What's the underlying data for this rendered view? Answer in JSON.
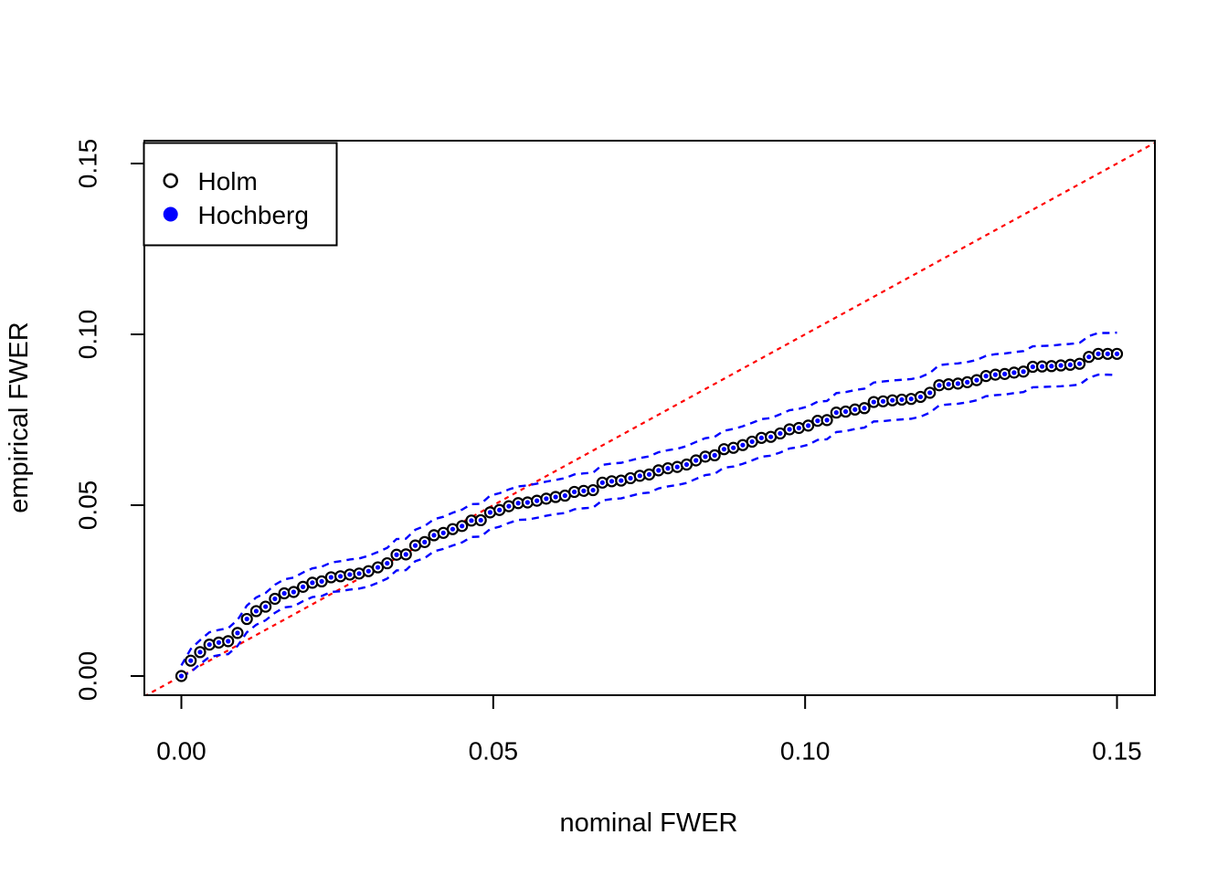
{
  "chart_data": {
    "type": "scatter",
    "title": "",
    "xlabel": "nominal FWER",
    "ylabel": "empirical FWER",
    "xlim": [
      -0.006,
      0.156
    ],
    "ylim": [
      -0.006,
      0.156
    ],
    "grid": false,
    "x_ticks": [
      {
        "value": 0.0,
        "label": "0.00"
      },
      {
        "value": 0.05,
        "label": "0.05"
      },
      {
        "value": 0.1,
        "label": "0.10"
      },
      {
        "value": 0.15,
        "label": "0.15"
      }
    ],
    "y_ticks": [
      {
        "value": 0.0,
        "label": "0.00"
      },
      {
        "value": 0.05,
        "label": "0.05"
      },
      {
        "value": 0.1,
        "label": "0.10"
      },
      {
        "value": 0.15,
        "label": "0.15"
      }
    ],
    "legend": {
      "position": "topleft",
      "entries": [
        {
          "label": "Holm",
          "marker": "open-circle",
          "color": "#000000"
        },
        {
          "label": "Hochberg",
          "marker": "filled-circle",
          "color": "#0000FF"
        }
      ]
    },
    "reference_line": {
      "type": "identity",
      "slope": 1,
      "intercept": 0,
      "style": "dashed",
      "color": "#FF0000"
    },
    "x": [
      0.0,
      0.0015,
      0.003,
      0.0045,
      0.006,
      0.0075,
      0.009,
      0.0105,
      0.012,
      0.0135,
      0.015,
      0.0165,
      0.018,
      0.0195,
      0.021,
      0.0225,
      0.024,
      0.0255,
      0.027,
      0.0285,
      0.03,
      0.0315,
      0.033,
      0.0345,
      0.036,
      0.0375,
      0.039,
      0.0405,
      0.042,
      0.0435,
      0.045,
      0.0465,
      0.048,
      0.0495,
      0.051,
      0.0525,
      0.054,
      0.0555,
      0.057,
      0.0585,
      0.06,
      0.0615,
      0.063,
      0.0645,
      0.066,
      0.0675,
      0.069,
      0.0705,
      0.072,
      0.0735,
      0.075,
      0.0765,
      0.078,
      0.0795,
      0.081,
      0.0825,
      0.084,
      0.0855,
      0.087,
      0.0885,
      0.09,
      0.0915,
      0.093,
      0.0945,
      0.096,
      0.0975,
      0.099,
      0.1005,
      0.102,
      0.1035,
      0.105,
      0.1065,
      0.108,
      0.1095,
      0.111,
      0.1125,
      0.114,
      0.1155,
      0.117,
      0.1185,
      0.12,
      0.1215,
      0.123,
      0.1245,
      0.126,
      0.1275,
      0.129,
      0.1305,
      0.132,
      0.1335,
      0.135,
      0.1365,
      0.138,
      0.1395,
      0.141,
      0.1425,
      0.144,
      0.1455,
      0.147,
      0.1485,
      0.15
    ],
    "series": [
      {
        "name": "Holm",
        "marker": "open-circle",
        "color": "#000000",
        "values": [
          0.0,
          0.0045,
          0.007,
          0.0092,
          0.0098,
          0.0102,
          0.0126,
          0.0167,
          0.019,
          0.0203,
          0.0226,
          0.0242,
          0.0246,
          0.0261,
          0.0273,
          0.0277,
          0.0289,
          0.0292,
          0.0297,
          0.03,
          0.0307,
          0.0318,
          0.033,
          0.0355,
          0.0356,
          0.0382,
          0.0392,
          0.0412,
          0.0419,
          0.043,
          0.0439,
          0.0455,
          0.0456,
          0.0479,
          0.0486,
          0.0497,
          0.0506,
          0.0508,
          0.0513,
          0.0519,
          0.0524,
          0.0528,
          0.0539,
          0.0542,
          0.0544,
          0.0566,
          0.057,
          0.0572,
          0.0579,
          0.0586,
          0.059,
          0.0602,
          0.0608,
          0.0612,
          0.0619,
          0.0631,
          0.0642,
          0.0646,
          0.0664,
          0.0668,
          0.0676,
          0.0686,
          0.0697,
          0.07,
          0.071,
          0.0722,
          0.0726,
          0.0733,
          0.0747,
          0.0749,
          0.0771,
          0.0774,
          0.078,
          0.0784,
          0.0802,
          0.0804,
          0.0807,
          0.0809,
          0.0811,
          0.0817,
          0.0829,
          0.0851,
          0.0854,
          0.0856,
          0.086,
          0.0866,
          0.0878,
          0.0882,
          0.0884,
          0.0888,
          0.0891,
          0.0905,
          0.0906,
          0.0907,
          0.0909,
          0.0911,
          0.0914,
          0.0934,
          0.0943,
          0.0943,
          0.0943
        ]
      },
      {
        "name": "Hochberg",
        "marker": "filled-circle",
        "color": "#0000FF",
        "values": [
          0.0,
          0.0045,
          0.007,
          0.0092,
          0.0098,
          0.0102,
          0.0126,
          0.0167,
          0.019,
          0.0203,
          0.0226,
          0.0242,
          0.0246,
          0.0261,
          0.0273,
          0.0277,
          0.0289,
          0.0292,
          0.0297,
          0.03,
          0.0307,
          0.0318,
          0.033,
          0.0355,
          0.0356,
          0.0382,
          0.0392,
          0.0412,
          0.0419,
          0.043,
          0.0439,
          0.0455,
          0.0456,
          0.0479,
          0.0486,
          0.0497,
          0.0506,
          0.0508,
          0.0513,
          0.0519,
          0.0524,
          0.0528,
          0.0539,
          0.0542,
          0.0544,
          0.0566,
          0.057,
          0.0572,
          0.0579,
          0.0586,
          0.059,
          0.0602,
          0.0608,
          0.0612,
          0.0619,
          0.0631,
          0.0642,
          0.0646,
          0.0664,
          0.0668,
          0.0676,
          0.0686,
          0.0697,
          0.07,
          0.071,
          0.0722,
          0.0726,
          0.0733,
          0.0747,
          0.0749,
          0.0771,
          0.0774,
          0.078,
          0.0784,
          0.0802,
          0.0804,
          0.0807,
          0.0809,
          0.0811,
          0.0817,
          0.0829,
          0.0851,
          0.0854,
          0.0856,
          0.086,
          0.0866,
          0.0878,
          0.0882,
          0.0884,
          0.0888,
          0.0891,
          0.0905,
          0.0906,
          0.0907,
          0.0909,
          0.0911,
          0.0914,
          0.0934,
          0.0943,
          0.0943,
          0.0943
        ]
      }
    ],
    "bands": {
      "style": "dashed",
      "color": "#0000FF",
      "upper": [
        0.0031,
        0.0079,
        0.0105,
        0.0128,
        0.0135,
        0.014,
        0.0164,
        0.0206,
        0.023,
        0.0243,
        0.0267,
        0.0283,
        0.0288,
        0.0303,
        0.0315,
        0.032,
        0.0332,
        0.0336,
        0.0341,
        0.0344,
        0.0352,
        0.0363,
        0.0375,
        0.0401,
        0.0402,
        0.0428,
        0.0439,
        0.0459,
        0.0466,
        0.0478,
        0.0487,
        0.0503,
        0.0504,
        0.0528,
        0.0535,
        0.0546,
        0.0555,
        0.0558,
        0.0563,
        0.0569,
        0.0574,
        0.0579,
        0.059,
        0.0593,
        0.0595,
        0.0618,
        0.0622,
        0.0624,
        0.0631,
        0.0638,
        0.0643,
        0.0655,
        0.0661,
        0.0665,
        0.0673,
        0.0685,
        0.0696,
        0.07,
        0.0718,
        0.0723,
        0.0731,
        0.0741,
        0.0752,
        0.0755,
        0.0766,
        0.0778,
        0.0782,
        0.0789,
        0.0803,
        0.0805,
        0.0828,
        0.0831,
        0.0837,
        0.0841,
        0.0859,
        0.0862,
        0.0865,
        0.0867,
        0.0869,
        0.0875,
        0.0887,
        0.091,
        0.0913,
        0.0915,
        0.0919,
        0.0925,
        0.0937,
        0.0942,
        0.0944,
        0.0948,
        0.0951,
        0.0965,
        0.0966,
        0.0967,
        0.097,
        0.0972,
        0.0975,
        0.0995,
        0.1004,
        0.1004,
        0.1005
      ],
      "lower": [
        0.0,
        0.0011,
        0.0035,
        0.0056,
        0.0061,
        0.0064,
        0.0088,
        0.0128,
        0.015,
        0.0163,
        0.0185,
        0.0201,
        0.0204,
        0.0219,
        0.0231,
        0.0234,
        0.0246,
        0.0248,
        0.0253,
        0.0256,
        0.0262,
        0.0273,
        0.0285,
        0.0309,
        0.031,
        0.0336,
        0.0345,
        0.0365,
        0.0372,
        0.0382,
        0.0391,
        0.0407,
        0.0408,
        0.043,
        0.0437,
        0.0448,
        0.0457,
        0.0458,
        0.0463,
        0.0469,
        0.0474,
        0.0477,
        0.0488,
        0.0491,
        0.0493,
        0.0514,
        0.0518,
        0.052,
        0.0527,
        0.0534,
        0.0537,
        0.0549,
        0.0555,
        0.0559,
        0.0565,
        0.0577,
        0.0588,
        0.0592,
        0.061,
        0.0613,
        0.0621,
        0.0631,
        0.0642,
        0.0645,
        0.0654,
        0.0666,
        0.067,
        0.0677,
        0.0691,
        0.0693,
        0.0714,
        0.0717,
        0.0723,
        0.0727,
        0.0745,
        0.0746,
        0.0749,
        0.0751,
        0.0753,
        0.0759,
        0.0771,
        0.0792,
        0.0795,
        0.0797,
        0.0801,
        0.0807,
        0.0819,
        0.0822,
        0.0824,
        0.0828,
        0.0831,
        0.0845,
        0.0846,
        0.0847,
        0.0848,
        0.085,
        0.0853,
        0.0873,
        0.0882,
        0.0882,
        0.0881
      ]
    },
    "colors": {
      "background": "#FFFFFF",
      "axis": "#000000",
      "holm": "#000000",
      "hochberg": "#0000FF",
      "band": "#0000FF",
      "identity": "#FF0000"
    }
  }
}
